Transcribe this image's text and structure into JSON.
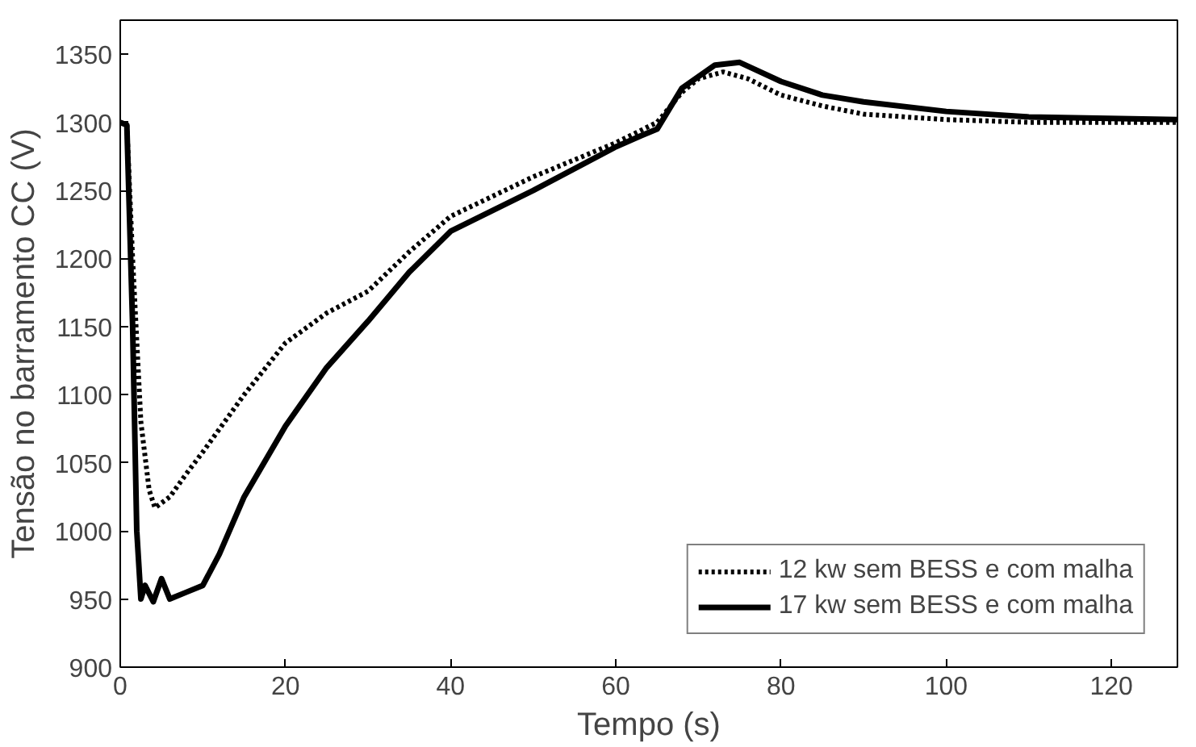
{
  "chart_data": {
    "type": "line",
    "xlabel": "Tempo (s)",
    "ylabel": "Tensão no barramento CC (V)",
    "xlim": [
      0,
      128
    ],
    "ylim": [
      900,
      1375
    ],
    "xticks": [
      0,
      20,
      40,
      60,
      80,
      100,
      120
    ],
    "yticks": [
      900,
      950,
      1000,
      1050,
      1100,
      1150,
      1200,
      1250,
      1300,
      1350
    ],
    "grid": false,
    "legend": "bottom right",
    "series": [
      {
        "name": "12 kw sem BESS e com malha",
        "color": "#000000",
        "line_style": "dotted",
        "x": [
          0,
          0.8,
          1.5,
          2.5,
          3.5,
          4.2,
          6,
          8,
          10,
          15,
          20,
          25,
          30,
          35,
          40,
          50,
          60,
          65,
          68,
          70,
          73,
          76,
          80,
          85,
          90,
          100,
          110,
          128
        ],
        "values": [
          1300,
          1298,
          1200,
          1080,
          1030,
          1017,
          1025,
          1042,
          1058,
          1100,
          1138,
          1160,
          1176,
          1205,
          1231,
          1260,
          1285,
          1300,
          1322,
          1332,
          1337,
          1332,
          1320,
          1312,
          1306,
          1302,
          1300,
          1300
        ]
      },
      {
        "name": "17 kw sem BESS e com malha",
        "color": "#000000",
        "line_style": "solid",
        "x": [
          0,
          0.8,
          1.5,
          2,
          2.5,
          3,
          4,
          5,
          6,
          8,
          10,
          12,
          15,
          20,
          25,
          30,
          35,
          40,
          50,
          60,
          63,
          65,
          68,
          72,
          75,
          80,
          85,
          90,
          100,
          110,
          128
        ],
        "values": [
          1300,
          1298,
          1150,
          1000,
          950,
          960,
          948,
          965,
          950,
          955,
          960,
          983,
          1025,
          1077,
          1120,
          1154,
          1190,
          1220,
          1250,
          1282,
          1290,
          1295,
          1325,
          1342,
          1344,
          1330,
          1320,
          1315,
          1308,
          1304,
          1302
        ]
      }
    ]
  }
}
